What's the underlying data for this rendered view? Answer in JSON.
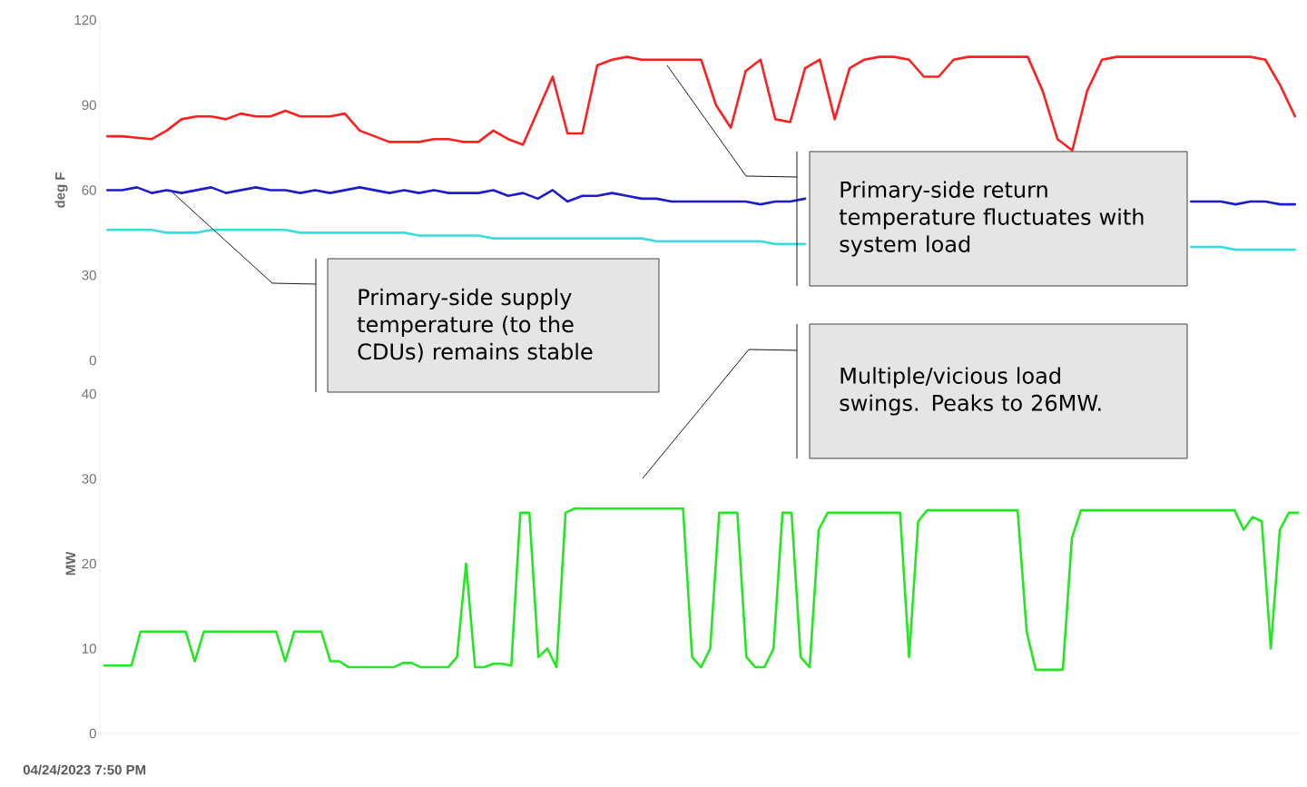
{
  "chart_data": [
    {
      "type": "line",
      "ylabel": "deg F",
      "ylim": [
        0,
        120
      ],
      "yticks": [
        0,
        30,
        60,
        90,
        120
      ],
      "tick_labels": "y",
      "categories": [
        null,
        null,
        null,
        null,
        null,
        null,
        null,
        null,
        null,
        null,
        null,
        null,
        null,
        null,
        null,
        null,
        null,
        null,
        null,
        null,
        null,
        null,
        null,
        null,
        null,
        null,
        null,
        null,
        null,
        null,
        null,
        null,
        null,
        null,
        null,
        null,
        null,
        null,
        null,
        null,
        null,
        null,
        null,
        null,
        null,
        null,
        null,
        null,
        null,
        null,
        null,
        null,
        null,
        null,
        null,
        null,
        null,
        null,
        null,
        null,
        null,
        null,
        null,
        null,
        null,
        null,
        null,
        null,
        null,
        null,
        null,
        null,
        null,
        null,
        null,
        null,
        null,
        null,
        null,
        null,
        null
      ],
      "series": [
        {
          "color": "#ff1f1f",
          "values": [
            79,
            79,
            78.5,
            78,
            81,
            85,
            86,
            86,
            85,
            87,
            86,
            86,
            88,
            86,
            86,
            86,
            87,
            81,
            79,
            77,
            77,
            77,
            78,
            78,
            77,
            77,
            81,
            78,
            76,
            88,
            100,
            80,
            80,
            104,
            106,
            107,
            106,
            106,
            106,
            106,
            106,
            90,
            82,
            102,
            106,
            85,
            84,
            103,
            106,
            85,
            103,
            106,
            107,
            107,
            106,
            100,
            100,
            106,
            107,
            107,
            107,
            107,
            107,
            95,
            78,
            74,
            95,
            106,
            107,
            107,
            107,
            107,
            107,
            107,
            107,
            107,
            107,
            107,
            106,
            97,
            86
          ]
        },
        {
          "color": "#1c1ccc",
          "values": [
            60,
            60,
            61,
            59,
            60,
            59,
            60,
            61,
            59,
            60,
            61,
            60,
            60,
            59,
            60,
            59,
            60,
            61,
            60,
            59,
            60,
            59,
            60,
            59,
            59,
            59,
            60,
            58,
            59,
            57,
            60,
            56,
            58,
            58,
            59,
            58,
            57,
            57,
            56,
            56,
            56,
            56,
            56,
            56,
            55,
            56,
            56,
            57,
            null,
            null,
            null,
            null,
            null,
            null,
            null,
            null,
            null,
            null,
            null,
            null,
            null,
            null,
            null,
            null,
            null,
            null,
            null,
            null,
            null,
            null,
            null,
            null,
            null,
            56,
            56,
            56,
            55,
            56,
            56,
            55,
            55
          ]
        },
        {
          "color": "#38dede",
          "values": [
            46,
            46,
            46,
            46,
            45,
            45,
            45,
            46,
            46,
            46,
            46,
            46,
            46,
            45,
            45,
            45,
            45,
            45,
            45,
            45,
            45,
            44,
            44,
            44,
            44,
            44,
            43,
            43,
            43,
            43,
            43,
            43,
            43,
            43,
            43,
            43,
            43,
            42,
            42,
            42,
            42,
            42,
            42,
            42,
            42,
            41,
            41,
            41,
            null,
            null,
            null,
            null,
            null,
            null,
            null,
            null,
            null,
            null,
            null,
            null,
            null,
            null,
            null,
            null,
            null,
            null,
            null,
            null,
            null,
            null,
            null,
            null,
            null,
            40,
            40,
            40,
            39,
            39,
            39,
            39,
            39
          ]
        }
      ],
      "annotations": [
        "Primary-side supply temperature (to the CDUs) remains stable",
        "Primary-side return temperature fluctuates with system load"
      ]
    },
    {
      "type": "line",
      "ylabel": "MW",
      "ylim": [
        0,
        40
      ],
      "yticks": [
        0,
        10,
        20,
        30,
        40
      ],
      "tick_labels": "y",
      "categories": [
        null,
        null,
        null,
        null,
        null,
        null,
        null,
        null,
        null,
        null,
        null,
        null,
        null,
        null,
        null,
        null,
        null,
        null,
        null,
        null,
        null,
        null,
        null,
        null,
        null,
        null,
        null,
        null,
        null,
        null,
        null,
        null,
        null,
        null,
        null,
        null,
        null,
        null,
        null,
        null,
        null,
        null,
        null,
        null,
        null,
        null,
        null,
        null,
        null,
        null,
        null,
        null,
        null,
        null,
        null,
        null,
        null,
        null,
        null,
        null,
        null,
        null,
        null,
        null,
        null,
        null,
        null,
        null,
        null,
        null,
        null,
        null,
        null,
        null,
        null,
        null,
        null,
        null,
        null,
        null,
        null,
        null,
        null,
        null,
        null,
        null,
        null,
        null,
        null,
        null,
        null,
        null,
        null,
        null,
        null,
        null,
        null,
        null,
        null,
        null,
        null,
        null,
        null,
        null,
        null,
        null,
        null,
        null,
        null,
        null,
        null,
        null,
        null,
        null,
        null,
        null,
        null,
        null,
        null,
        null,
        null,
        null,
        null,
        null,
        null,
        null,
        null,
        null,
        null,
        null,
        null,
        null,
        null
      ],
      "series": [
        {
          "color": "#22e822",
          "values": [
            8,
            8,
            8,
            8,
            12,
            12,
            12,
            12,
            12,
            12,
            8.5,
            12,
            12,
            12,
            12,
            12,
            12,
            12,
            12,
            12,
            8.5,
            12,
            12,
            12,
            12,
            8.5,
            8.5,
            7.8,
            7.8,
            7.8,
            7.8,
            7.8,
            7.8,
            8.3,
            8.3,
            7.8,
            7.8,
            7.8,
            7.8,
            9,
            20,
            7.8,
            7.8,
            8.2,
            8.2,
            8,
            26,
            26,
            9,
            10,
            7.8,
            26,
            26.5,
            26.5,
            26.5,
            26.5,
            26.5,
            26.5,
            26.5,
            26.5,
            26.5,
            26.5,
            26.5,
            26.5,
            26.5,
            9,
            7.8,
            10,
            26,
            26,
            26,
            9,
            7.8,
            7.8,
            10,
            26,
            26,
            9,
            7.8,
            24,
            26,
            26,
            26,
            26,
            26,
            26,
            26,
            26,
            26,
            9,
            25,
            26.3,
            26.3,
            26.3,
            26.3,
            26.3,
            26.3,
            26.3,
            26.3,
            26.3,
            26.3,
            26.3,
            12,
            7.5,
            7.5,
            7.5,
            7.5,
            23,
            26.3,
            26.3,
            26.3,
            26.3,
            26.3,
            26.3,
            26.3,
            26.3,
            26.3,
            26.3,
            26.3,
            26.3,
            26.3,
            26.3,
            26.3,
            26.3,
            26.3,
            26.3,
            24,
            25.5,
            25,
            10,
            24,
            26,
            26
          ]
        }
      ],
      "annotations": [
        "Multiple/vicious load swings. Peaks to 26MW.",
        "04/24/2023 7:50 PM"
      ]
    }
  ]
}
